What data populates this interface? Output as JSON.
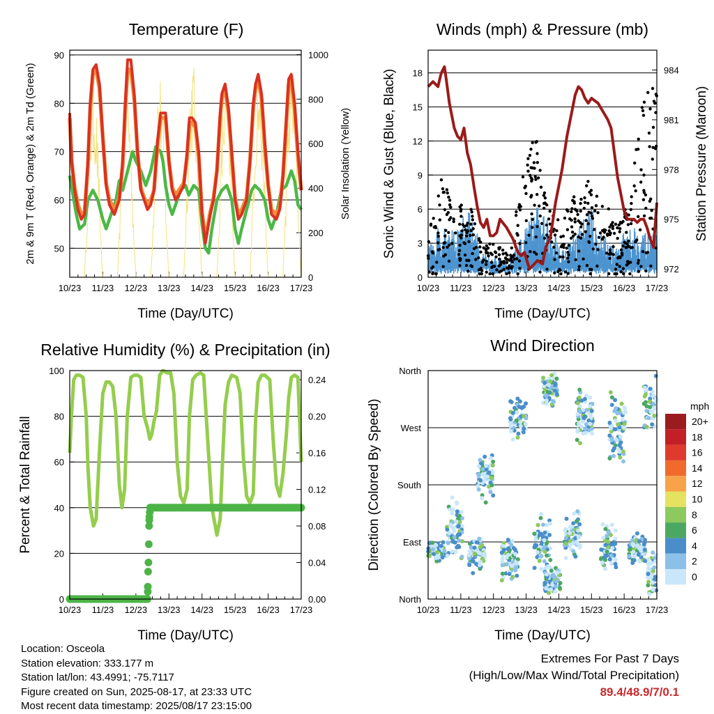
{
  "location_label": "Location: Osceola",
  "elevation_label": "Station elevation: 333.177 m",
  "latlon_label": "Station lat/lon: 43.4991; -75.7117",
  "created_label": "Figure created on Sun, 2025-08-17, at 23:33 UTC",
  "recent_label": "Most recent data timestamp: 2025/08/17 23:15:00",
  "extremes": {
    "title": "Extremes For Past 7 Days",
    "subtitle": "(High/Low/Max Wind/Total Precipitation)",
    "values": "89.4/48.9/7/0.1"
  },
  "chart_data": [
    {
      "type": "line",
      "title": "Temperature (F)",
      "xlabel": "Time (Day/UTC)",
      "ylabel": "2m & 9m T (Red, Orange) & 2m Td (Green)",
      "y2label": "Solar Insolation (Yellow)",
      "xticks": [
        "10/23",
        "11/23",
        "12/23",
        "13/23",
        "14/23",
        "15/23",
        "16/23",
        "17/23"
      ],
      "xlim": [
        0,
        7
      ],
      "ylim": [
        44,
        91
      ],
      "yticks": [
        50,
        60,
        70,
        80,
        90
      ],
      "y2lim": [
        0,
        1020
      ],
      "y2ticks": [
        0,
        200,
        400,
        600,
        800,
        1000
      ],
      "grid": "horizontal",
      "colors": {
        "t2m": "#d93121",
        "t9m": "#f08c3a",
        "td": "#4cb847",
        "solar": "#f5e27a"
      },
      "series": [
        {
          "name": "2m T",
          "axis": "left",
          "x": [
            0,
            0.06,
            0.15,
            0.25,
            0.35,
            0.45,
            0.55,
            0.62,
            0.7,
            0.8,
            0.9,
            1.0,
            1.1,
            1.2,
            1.35,
            1.5,
            1.6,
            1.68,
            1.75,
            1.85,
            1.95,
            2.05,
            2.15,
            2.25,
            2.35,
            2.45,
            2.55,
            2.65,
            2.75,
            2.82,
            2.9,
            3.0,
            3.1,
            3.2,
            3.3,
            3.45,
            3.55,
            3.62,
            3.7,
            3.8,
            3.9,
            4.0,
            4.1,
            4.25,
            4.35,
            4.45,
            4.55,
            4.6,
            4.7,
            4.8,
            4.9,
            5.0,
            5.1,
            5.2,
            5.35,
            5.45,
            5.55,
            5.62,
            5.7,
            5.8,
            5.9,
            6.0,
            6.1,
            6.25,
            6.35,
            6.45,
            6.55,
            6.62,
            6.7,
            6.8,
            6.9,
            7.0
          ],
          "y": [
            78,
            68,
            62,
            58,
            56,
            57,
            68,
            80,
            87,
            88,
            84,
            73,
            63,
            59,
            57,
            60,
            68,
            80,
            89,
            89,
            82,
            70,
            62,
            60,
            58,
            59,
            62,
            72,
            78,
            78,
            78,
            68,
            62,
            60,
            61,
            63,
            70,
            77,
            77,
            76,
            70,
            57,
            51,
            57,
            60,
            66,
            78,
            82,
            84,
            79,
            70,
            60,
            56,
            57,
            60,
            68,
            80,
            84,
            86,
            82,
            72,
            63,
            57,
            56,
            58,
            65,
            77,
            85,
            86,
            80,
            70,
            62
          ]
        },
        {
          "name": "9m T",
          "axis": "left",
          "x": [
            0,
            0.06,
            0.15,
            0.25,
            0.35,
            0.45,
            0.55,
            0.62,
            0.7,
            0.8,
            0.9,
            1.0,
            1.1,
            1.2,
            1.35,
            1.5,
            1.6,
            1.68,
            1.75,
            1.85,
            1.95,
            2.05,
            2.15,
            2.25,
            2.35,
            2.45,
            2.55,
            2.65,
            2.75,
            2.82,
            2.9,
            3.0,
            3.1,
            3.2,
            3.3,
            3.45,
            3.55,
            3.62,
            3.7,
            3.8,
            3.9,
            4.0,
            4.1,
            4.25,
            4.35,
            4.45,
            4.55,
            4.6,
            4.7,
            4.8,
            4.9,
            5.0,
            5.1,
            5.2,
            5.35,
            5.45,
            5.55,
            5.62,
            5.7,
            5.8,
            5.9,
            6.0,
            6.1,
            6.25,
            6.35,
            6.45,
            6.55,
            6.62,
            6.7,
            6.8,
            6.9,
            7.0
          ],
          "y": [
            77,
            68,
            62.5,
            59,
            57,
            57.5,
            67,
            79,
            86,
            87,
            83,
            73,
            63.5,
            60,
            58,
            60.5,
            67,
            79,
            87,
            87,
            81,
            70,
            62.5,
            60.5,
            59,
            60,
            62,
            71,
            77,
            77,
            77,
            68,
            62.5,
            61,
            62,
            63.5,
            69,
            76,
            76,
            75,
            69,
            57.5,
            52,
            57.5,
            60.5,
            66,
            77,
            81,
            83,
            78,
            69,
            60.5,
            57,
            58,
            60.5,
            68,
            79,
            83,
            85,
            81,
            71,
            63,
            58,
            57,
            58.5,
            65,
            76,
            84,
            85,
            79,
            69,
            62
          ]
        },
        {
          "name": "2m Td",
          "axis": "left",
          "x": [
            0,
            0.1,
            0.2,
            0.3,
            0.45,
            0.55,
            0.7,
            0.85,
            1.0,
            1.1,
            1.25,
            1.4,
            1.5,
            1.6,
            1.75,
            1.9,
            2.0,
            2.15,
            2.3,
            2.45,
            2.6,
            2.75,
            2.82,
            2.9,
            3.0,
            3.1,
            3.2,
            3.35,
            3.5,
            3.6,
            3.75,
            3.9,
            4.0,
            4.1,
            4.2,
            4.3,
            4.45,
            4.6,
            4.75,
            4.9,
            5.0,
            5.1,
            5.2,
            5.35,
            5.5,
            5.6,
            5.75,
            5.9,
            6.0,
            6.1,
            6.25,
            6.4,
            6.55,
            6.7,
            6.8,
            6.9,
            7.0
          ],
          "y": [
            65,
            61,
            57,
            54,
            55,
            60,
            62,
            60,
            56,
            54,
            57,
            60,
            64,
            62,
            66,
            70,
            68,
            66,
            63,
            66,
            71,
            70,
            68,
            63,
            59,
            57,
            59,
            62,
            63,
            61,
            63,
            62,
            55,
            50,
            49,
            54,
            60,
            62,
            63,
            60,
            54,
            51,
            54,
            58,
            62,
            63,
            62,
            60,
            56,
            54,
            57,
            62,
            63,
            66,
            64,
            59,
            58
          ]
        },
        {
          "name": "Solar Insolation",
          "axis": "right",
          "days": [
            0.72,
            1.72,
            2.72,
            3.72,
            4.72,
            5.72,
            6.72
          ],
          "peaks": [
            920,
            950,
            930,
            1000,
            920,
            960,
            1000
          ]
        }
      ]
    },
    {
      "type": "scatter",
      "title": "Winds (mph) & Pressure (mb)",
      "xlabel": "Time (Day/UTC)",
      "ylabel": "Sonic Wind & Gust (Blue, Black)",
      "y2label": "Station Pressure (Maroon)",
      "xticks": [
        "10/23",
        "11/23",
        "12/23",
        "13/23",
        "14/23",
        "15/23",
        "16/23",
        "17/23"
      ],
      "xlim": [
        0,
        7
      ],
      "ylim": [
        0,
        20
      ],
      "yticks": [
        0,
        3,
        6,
        9,
        12,
        15,
        18
      ],
      "y2lim": [
        971.5,
        985.2
      ],
      "y2ticks": [
        972,
        975,
        978,
        981,
        984
      ],
      "grid": "horizontal",
      "colors": {
        "wind": "#4d94d0",
        "gust": "#000000",
        "pressure": "#9b1a1a"
      },
      "series": [
        {
          "name": "Pressure",
          "axis": "right",
          "x": [
            0,
            0.15,
            0.3,
            0.4,
            0.5,
            0.55,
            0.65,
            0.8,
            0.9,
            1.0,
            1.1,
            1.2,
            1.3,
            1.4,
            1.5,
            1.6,
            1.7,
            1.8,
            1.9,
            2.0,
            2.1,
            2.2,
            2.4,
            2.6,
            2.75,
            2.85,
            2.95,
            3.1,
            3.2,
            3.35,
            3.5,
            3.6,
            3.75,
            3.9,
            4.0,
            4.1,
            4.25,
            4.4,
            4.5,
            4.6,
            4.7,
            4.8,
            4.9,
            5.0,
            5.2,
            5.35,
            5.5,
            5.6,
            5.7,
            5.8,
            5.9,
            6.0,
            6.1,
            6.2,
            6.3,
            6.4,
            6.5,
            6.6,
            6.7,
            6.8,
            6.9,
            7.0
          ],
          "y": [
            983.0,
            983.3,
            983.0,
            983.8,
            984.2,
            983.5,
            982.0,
            980.5,
            980.0,
            979.8,
            980.5,
            979.0,
            978.3,
            977.0,
            975.8,
            974.8,
            974.5,
            975.0,
            974.0,
            974.0,
            974.2,
            975.0,
            974.5,
            973.8,
            973.0,
            972.8,
            973.0,
            972.0,
            972.2,
            972.5,
            972.3,
            973.3,
            974.0,
            976.0,
            977.0,
            978.0,
            980.0,
            981.5,
            982.5,
            983.0,
            982.8,
            982.3,
            982.0,
            982.3,
            982.0,
            981.5,
            981.0,
            980.5,
            979.0,
            977.5,
            976.5,
            975.5,
            975.0,
            975.0,
            975.0,
            974.8,
            975.0,
            975.0,
            974.5,
            973.8,
            973.3,
            976.0
          ]
        },
        {
          "name": "Wind",
          "axis": "left",
          "envelope": [
            2,
            4,
            3,
            5,
            2,
            1.5,
            1,
            3,
            5,
            4,
            2,
            3,
            5,
            3,
            2,
            4,
            3,
            3
          ]
        },
        {
          "name": "Gust",
          "axis": "left",
          "peaks": [
            5,
            9,
            6,
            7,
            3,
            3,
            2,
            9,
            13,
            6,
            5,
            8,
            9,
            7,
            5,
            7,
            16,
            18
          ]
        }
      ]
    },
    {
      "type": "line",
      "title": "Relative Humidity (%) & Precipitation (in)",
      "xlabel": "Time (Day/UTC)",
      "ylabel": "Percent & Total Rainfall",
      "xticks": [
        "10/23",
        "11/23",
        "12/23",
        "13/23",
        "14/23",
        "15/23",
        "16/23",
        "17/23"
      ],
      "xlim": [
        0,
        7
      ],
      "ylim": [
        0,
        100
      ],
      "yticks": [
        0,
        20,
        40,
        60,
        80,
        100
      ],
      "y2lim": [
        0,
        0.25
      ],
      "y2ticks": [
        "0.00",
        "0.04",
        "0.08",
        "0.12",
        "0.16",
        "0.20",
        "0.24"
      ],
      "grid": "horizontal",
      "colors": {
        "rh": "#95cd4e",
        "precip": "#4cb447"
      },
      "series": [
        {
          "name": "Relative Humidity",
          "axis": "left",
          "x": [
            0,
            0.05,
            0.12,
            0.2,
            0.3,
            0.4,
            0.5,
            0.55,
            0.62,
            0.72,
            0.8,
            0.9,
            1.0,
            1.1,
            1.2,
            1.3,
            1.4,
            1.5,
            1.58,
            1.66,
            1.74,
            1.85,
            1.95,
            2.05,
            2.15,
            2.25,
            2.35,
            2.42,
            2.48,
            2.55,
            2.62,
            2.72,
            2.82,
            2.95,
            3.05,
            3.15,
            3.25,
            3.35,
            3.45,
            3.55,
            3.62,
            3.72,
            3.82,
            3.95,
            4.05,
            4.15,
            4.3,
            4.45,
            4.55,
            4.62,
            4.7,
            4.8,
            4.9,
            5.05,
            5.15,
            5.25,
            5.35,
            5.45,
            5.55,
            5.62,
            5.7,
            5.8,
            5.9,
            6.05,
            6.15,
            6.25,
            6.35,
            6.45,
            6.55,
            6.62,
            6.7,
            6.8,
            6.9,
            7.0
          ],
          "y": [
            64,
            80,
            96,
            98,
            98,
            97,
            80,
            58,
            40,
            32,
            35,
            65,
            90,
            95,
            95,
            93,
            80,
            50,
            40,
            48,
            80,
            97,
            98,
            98,
            97,
            80,
            75,
            70,
            72,
            78,
            82,
            98,
            100,
            99,
            99,
            90,
            60,
            45,
            42,
            48,
            80,
            96,
            98,
            99,
            98,
            75,
            40,
            28,
            35,
            60,
            85,
            95,
            98,
            97,
            90,
            62,
            45,
            42,
            46,
            78,
            95,
            98,
            98,
            96,
            70,
            50,
            45,
            55,
            72,
            88,
            97,
            98,
            97,
            60
          ]
        },
        {
          "name": "Total Rainfall",
          "axis": "right",
          "x": [
            0,
            2.35,
            2.36,
            2.37,
            2.38,
            2.39,
            2.4,
            2.41,
            2.42,
            2.43,
            2.44,
            2.45,
            3.5,
            4.5,
            5.5,
            6.5,
            7.0
          ],
          "y": [
            0,
            0,
            0.008,
            0.03,
            0.04,
            0.06,
            0.08,
            0.09,
            0.095,
            0.1,
            0.1,
            0.1,
            0.1,
            0.1,
            0.1,
            0.1,
            0.1
          ]
        }
      ]
    },
    {
      "type": "scatter",
      "title": "Wind Direction",
      "xlabel": "Time (Day/UTC)",
      "ylabel": "Direction (Colored By Speed)",
      "xticks": [
        "10/23",
        "11/23",
        "12/23",
        "13/23",
        "14/23",
        "15/23",
        "16/23",
        "17/23"
      ],
      "xlim": [
        0,
        7
      ],
      "yticks": [
        "North",
        "East",
        "South",
        "West",
        "North"
      ],
      "ylim": [
        0,
        360
      ],
      "grid": "horizontal",
      "legend": {
        "title": "mph",
        "position": "right",
        "labels": [
          "20+",
          "18",
          "16",
          "14",
          "12",
          "10",
          "8",
          "6",
          "4",
          "2",
          "0"
        ],
        "colors": [
          "#9b1c1f",
          "#c21f26",
          "#de3a2d",
          "#f06a2e",
          "#f8a24a",
          "#e5e25f",
          "#8cc95e",
          "#4aa862",
          "#4a8ec9",
          "#8cc0e8",
          "#c9e7f9"
        ]
      },
      "clusters": [
        {
          "day": 0.25,
          "dir": 75,
          "spread": 18
        },
        {
          "day": 0.8,
          "dir": 110,
          "spread": 60
        },
        {
          "day": 1.5,
          "dir": 70,
          "spread": 30
        },
        {
          "day": 1.75,
          "dir": 190,
          "spread": 40
        },
        {
          "day": 2.5,
          "dir": 60,
          "spread": 40
        },
        {
          "day": 2.75,
          "dir": 280,
          "spread": 40
        },
        {
          "day": 3.5,
          "dir": 90,
          "spread": 50
        },
        {
          "day": 3.75,
          "dir": 330,
          "spread": 30
        },
        {
          "day": 3.8,
          "dir": 30,
          "spread": 25
        },
        {
          "day": 4.4,
          "dir": 100,
          "spread": 40
        },
        {
          "day": 4.8,
          "dir": 290,
          "spread": 50
        },
        {
          "day": 5.5,
          "dir": 80,
          "spread": 40
        },
        {
          "day": 5.8,
          "dir": 270,
          "spread": 60
        },
        {
          "day": 6.4,
          "dir": 80,
          "spread": 30
        },
        {
          "day": 6.85,
          "dir": 310,
          "spread": 50
        },
        {
          "day": 6.95,
          "dir": 40,
          "spread": 40
        }
      ]
    }
  ]
}
